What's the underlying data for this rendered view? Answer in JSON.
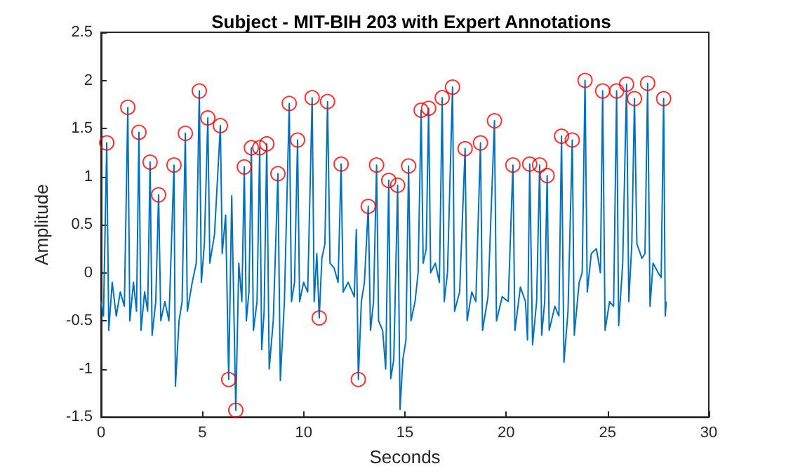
{
  "chart_data": {
    "type": "line",
    "title": "Subject - MIT-BIH 203 with Expert Annotations",
    "xlabel": "Seconds",
    "ylabel": "Amplitude",
    "xlim": [
      0,
      30
    ],
    "xticks": [
      0,
      5,
      10,
      15,
      20,
      25,
      30
    ],
    "ylim": [
      -1.5,
      2.5
    ],
    "yticks": [
      -1.5,
      -1,
      -0.5,
      0,
      0.5,
      1,
      1.5,
      2,
      2.5
    ],
    "grid": false,
    "series": [
      {
        "color": "#0072bd",
        "marker": "none",
        "x": [
          0,
          0.12,
          0.28,
          0.38,
          0.55,
          0.75,
          0.95,
          1.15,
          1.32,
          1.42,
          1.6,
          1.75,
          1.87,
          1.97,
          2.15,
          2.3,
          2.42,
          2.52,
          2.7,
          2.84,
          2.95,
          3.15,
          3.35,
          3.6,
          3.67,
          3.85,
          4.0,
          4.16,
          4.26,
          4.5,
          4.7,
          4.85,
          4.95,
          5.1,
          5.27,
          5.37,
          5.6,
          5.89,
          5.98,
          6.15,
          6.3,
          6.45,
          6.65,
          6.8,
          6.95,
          7.07,
          7.17,
          7.3,
          7.42,
          7.52,
          7.7,
          7.83,
          7.93,
          8.05,
          8.18,
          8.3,
          8.5,
          8.73,
          8.85,
          9.05,
          9.29,
          9.4,
          9.55,
          9.7,
          9.8,
          10.0,
          10.2,
          10.42,
          10.52,
          10.65,
          10.77,
          10.9,
          11.05,
          11.18,
          11.3,
          11.5,
          11.7,
          11.85,
          11.95,
          12.2,
          12.5,
          12.6,
          12.7,
          12.85,
          13.0,
          13.19,
          13.3,
          13.45,
          13.6,
          13.7,
          13.9,
          14.05,
          14.2,
          14.3,
          14.45,
          14.64,
          14.76,
          14.9,
          15.05,
          15.18,
          15.3,
          15.5,
          15.65,
          15.8,
          15.9,
          16.05,
          16.17,
          16.27,
          16.5,
          16.7,
          16.84,
          16.94,
          17.1,
          17.35,
          17.45,
          17.7,
          17.97,
          18.07,
          18.3,
          18.5,
          18.73,
          18.83,
          19.1,
          19.42,
          19.52,
          19.8,
          20.1,
          20.33,
          20.43,
          20.7,
          20.95,
          21.05,
          21.16,
          21.3,
          21.5,
          21.65,
          21.75,
          21.9,
          22.02,
          22.12,
          22.4,
          22.6,
          22.73,
          22.85,
          23.05,
          23.26,
          23.36,
          23.6,
          23.75,
          23.89,
          24.0,
          24.2,
          24.45,
          24.65,
          24.76,
          24.88,
          25.1,
          25.3,
          25.45,
          25.55,
          25.75,
          25.94,
          26.05,
          26.2,
          26.33,
          26.45,
          26.7,
          26.85,
          26.98,
          27.1,
          27.25,
          27.5,
          27.65,
          27.77,
          27.85,
          27.9
        ],
        "values": [
          -0.3,
          -0.45,
          1.35,
          -0.6,
          -0.1,
          -0.45,
          -0.2,
          -0.35,
          1.72,
          -0.5,
          -0.1,
          -0.4,
          1.46,
          -0.6,
          -0.2,
          -0.4,
          1.15,
          -0.65,
          -0.3,
          0.81,
          -0.5,
          -0.3,
          -0.5,
          1.12,
          -1.18,
          -0.5,
          -0.3,
          1.45,
          -0.4,
          -0.1,
          0.1,
          1.89,
          -0.1,
          0.3,
          1.61,
          0.1,
          0.4,
          1.53,
          0.2,
          0.6,
          -1.11,
          0.8,
          -1.43,
          0.1,
          -0.3,
          1.1,
          -0.5,
          -0.2,
          1.3,
          -0.6,
          -0.3,
          1.3,
          -0.8,
          -0.4,
          1.34,
          -1.0,
          -0.5,
          1.03,
          -1.12,
          -0.3,
          1.76,
          -0.3,
          -0.1,
          1.38,
          -0.3,
          -0.1,
          -0.2,
          1.82,
          -0.3,
          0.2,
          -0.47,
          0.15,
          0.3,
          1.78,
          0.1,
          0.05,
          -0.1,
          1.13,
          -0.2,
          -0.1,
          -0.25,
          0.45,
          -1.11,
          -0.3,
          -0.1,
          0.69,
          -0.6,
          -0.3,
          1.12,
          -0.5,
          -0.6,
          -1.0,
          0.96,
          -1.1,
          -0.9,
          0.91,
          -1.42,
          -0.9,
          -0.7,
          1.11,
          -0.5,
          -0.3,
          0.0,
          1.69,
          0.1,
          0.25,
          1.71,
          0.0,
          0.1,
          -0.1,
          1.82,
          -0.3,
          0.0,
          1.93,
          -0.4,
          -0.2,
          1.29,
          -0.5,
          -0.2,
          -0.3,
          1.35,
          -0.6,
          -0.25,
          1.58,
          -0.5,
          -0.25,
          -0.3,
          1.12,
          -0.6,
          -0.15,
          -0.3,
          -0.7,
          1.13,
          -0.75,
          -0.3,
          1.12,
          -0.65,
          -0.3,
          1.01,
          -0.6,
          -0.35,
          -0.45,
          1.42,
          -0.93,
          -0.4,
          1.38,
          -0.65,
          -0.1,
          0.0,
          2.0,
          -0.2,
          0.2,
          0.25,
          0.0,
          1.89,
          -0.6,
          -0.3,
          -0.35,
          1.89,
          -0.55,
          0.1,
          1.96,
          -0.3,
          0.3,
          1.81,
          0.3,
          0.15,
          0.2,
          1.97,
          -0.35,
          0.1,
          0.0,
          -0.05,
          1.81,
          -0.45,
          -0.3
        ]
      },
      {
        "type": "scatter",
        "color": "#ff0000",
        "marker": "circle",
        "x": [
          0.28,
          1.32,
          1.87,
          2.42,
          2.84,
          3.6,
          4.16,
          4.85,
          5.27,
          5.89,
          6.3,
          6.65,
          7.07,
          7.42,
          7.83,
          8.18,
          8.73,
          9.29,
          9.7,
          10.42,
          10.77,
          11.18,
          11.85,
          12.7,
          13.19,
          13.6,
          14.2,
          14.64,
          15.18,
          15.8,
          16.17,
          16.84,
          17.35,
          17.97,
          18.73,
          19.42,
          20.33,
          21.16,
          21.65,
          22.02,
          22.73,
          23.26,
          23.89,
          24.76,
          25.45,
          25.94,
          26.33,
          26.98,
          27.77
        ],
        "values": [
          1.35,
          1.72,
          1.46,
          1.15,
          0.81,
          1.12,
          1.45,
          1.89,
          1.61,
          1.53,
          -1.11,
          -1.43,
          1.1,
          1.3,
          1.3,
          1.34,
          1.03,
          1.76,
          1.38,
          1.82,
          -0.47,
          1.78,
          1.13,
          -1.11,
          0.69,
          1.12,
          0.96,
          0.91,
          1.11,
          1.69,
          1.71,
          1.82,
          1.93,
          1.29,
          1.35,
          1.58,
          1.12,
          1.13,
          1.12,
          1.01,
          1.42,
          1.38,
          2.0,
          1.89,
          1.89,
          1.96,
          1.81,
          1.97,
          1.81
        ]
      }
    ]
  }
}
